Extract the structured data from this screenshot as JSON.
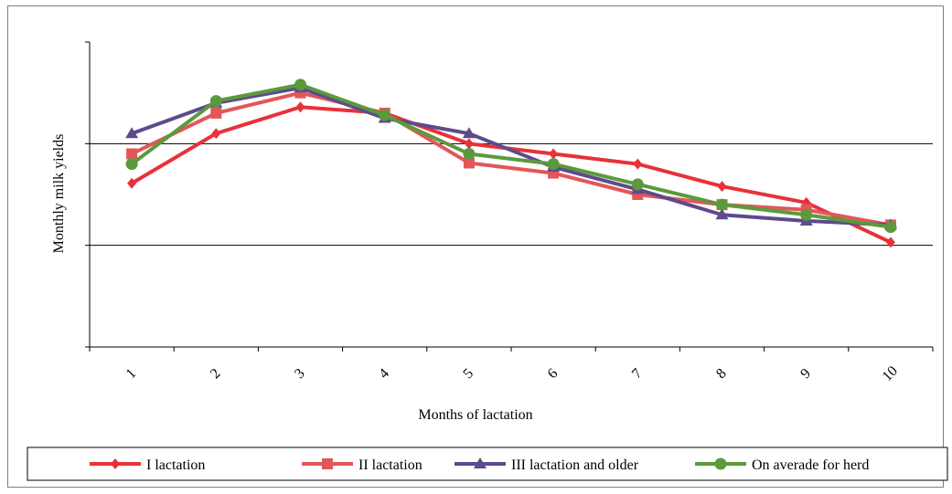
{
  "chart_data": {
    "type": "line",
    "title": "",
    "xlabel": "Months of lactation",
    "ylabel": "Monthly milk yields",
    "categories": [
      "1",
      "2",
      "3",
      "4",
      "5",
      "6",
      "7",
      "8",
      "9",
      "10"
    ],
    "ylim": [
      0,
      3
    ],
    "grid": "horizontal",
    "legend_position": "bottom",
    "series": [
      {
        "name": "I lactation",
        "color": "#e8313a",
        "marker": "diamond",
        "values": [
          1.61,
          2.1,
          2.36,
          2.3,
          2.0,
          1.9,
          1.8,
          1.58,
          1.42,
          1.03
        ]
      },
      {
        "name": "II lactation",
        "color": "#e15759",
        "marker": "square",
        "values": [
          1.9,
          2.3,
          2.5,
          2.3,
          1.81,
          1.71,
          1.5,
          1.4,
          1.35,
          1.2
        ]
      },
      {
        "name": "III lactation and older",
        "color": "#5e4a8c",
        "marker": "triangle",
        "values": [
          2.1,
          2.4,
          2.55,
          2.25,
          2.1,
          1.77,
          1.55,
          1.3,
          1.24,
          1.2
        ]
      },
      {
        "name": "On averade for herd",
        "color": "#5b9a3c",
        "marker": "circle",
        "values": [
          1.8,
          2.42,
          2.58,
          2.28,
          1.9,
          1.8,
          1.6,
          1.4,
          1.3,
          1.18
        ]
      }
    ]
  }
}
